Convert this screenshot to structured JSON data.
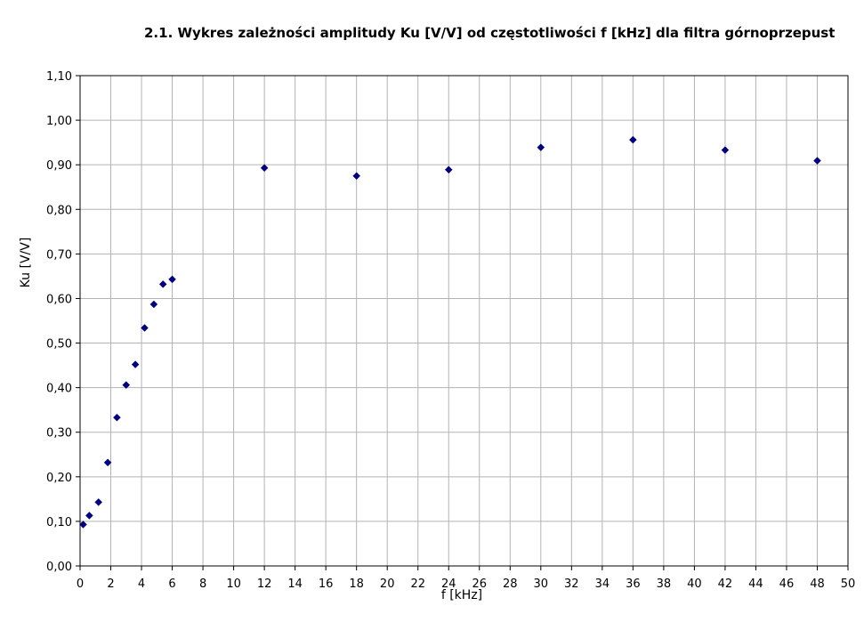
{
  "chart_data": {
    "type": "scatter",
    "title": "2.1. Wykres zależności amplitudy Ku [V/V] od częstotliwości f [kHz] dla filtra górnoprzepust",
    "xlabel": "f [kHz]",
    "ylabel": "Ku [V/V]",
    "xlim": [
      0,
      50
    ],
    "ylim": [
      0,
      1.1
    ],
    "x_ticks": [
      "0",
      "2",
      "4",
      "6",
      "8",
      "10",
      "12",
      "14",
      "16",
      "18",
      "20",
      "22",
      "24",
      "26",
      "28",
      "30",
      "32",
      "34",
      "36",
      "38",
      "40",
      "42",
      "44",
      "46",
      "48",
      "50"
    ],
    "y_ticks": [
      "0,00",
      "0,10",
      "0,20",
      "0,30",
      "0,40",
      "0,50",
      "0,60",
      "0,70",
      "0,80",
      "0,90",
      "1,00",
      "1,10"
    ],
    "grid": true,
    "legend": "none",
    "marker": "diamond",
    "marker_color": "#000080",
    "series": [
      {
        "x": [
          0.2,
          0.6,
          1.2,
          1.8,
          2.4,
          3.0,
          3.6,
          4.2,
          4.8,
          5.4,
          6.0,
          12,
          18,
          24,
          30,
          36,
          42,
          48
        ],
        "y": [
          0.093,
          0.113,
          0.143,
          0.232,
          0.333,
          0.406,
          0.452,
          0.534,
          0.587,
          0.632,
          0.643,
          0.893,
          0.875,
          0.889,
          0.939,
          0.956,
          0.933,
          0.909
        ]
      }
    ]
  }
}
